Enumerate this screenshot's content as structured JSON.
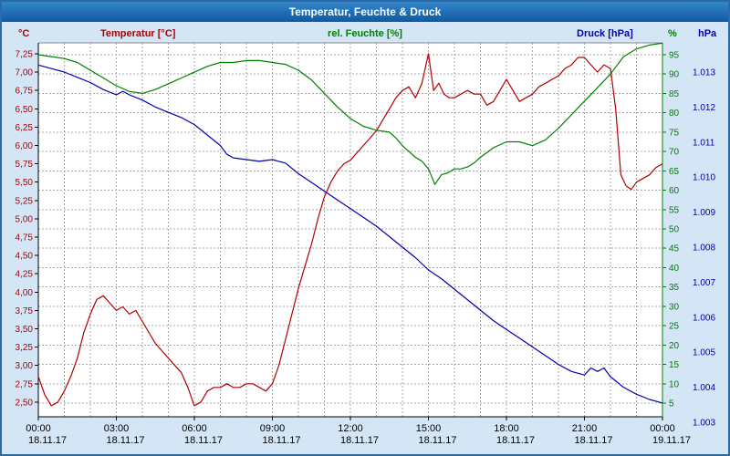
{
  "window": {
    "title": "Temperatur, Feuchte & Druck"
  },
  "header": {
    "left_unit": "°C",
    "temperature_label": "Temperatur [°C]",
    "humidity_label": "rel. Feuchte [%]",
    "pressure_label": "Druck [hPa]",
    "humidity_unit": "%",
    "pressure_unit": "hPa"
  },
  "colors": {
    "temperature": "#b00000",
    "humidity": "#008000",
    "pressure": "#0000b0",
    "grid": "#a8a8a8",
    "axis": "#000000",
    "background": "#d4e6f6",
    "plot_background": "#ffffff"
  },
  "chart_data": {
    "type": "line",
    "title": "Temperatur, Feuchte & Druck",
    "grid": "on",
    "x_axis": {
      "start": 0,
      "end": 24,
      "hours_per_gridline": 1,
      "hours_per_label": 3,
      "time_labels": [
        "00:00",
        "03:00",
        "06:00",
        "09:00",
        "12:00",
        "15:00",
        "18:00",
        "21:00",
        "00:00"
      ],
      "date_labels": [
        "18.11.17",
        "18.11.17",
        "18.11.17",
        "18.11.17",
        "18.11.17",
        "18.11.17",
        "18.11.17",
        "18.11.17",
        "19.11.17"
      ]
    },
    "y_axes": [
      {
        "id": "temperature",
        "title": "Temperatur [°C]",
        "unit": "°C",
        "color": "#b00000",
        "min": 2.5,
        "max": 7.25,
        "step": 0.25,
        "decimals": 2,
        "decimal_comma": true,
        "side": "left"
      },
      {
        "id": "humidity",
        "title": "rel. Feuchte [%]",
        "unit": "%",
        "color": "#008000",
        "min": 5,
        "max": 95,
        "step": 5,
        "decimals": 0,
        "side": "right"
      },
      {
        "id": "pressure",
        "title": "Druck [hPa]",
        "unit": "hPa",
        "color": "#0000b0",
        "min": 1003,
        "max": 1013,
        "step": 1,
        "divide_by_1000": true,
        "side": "far-right"
      }
    ],
    "series": [
      {
        "id": "temperature",
        "name": "Temperatur",
        "axis": "temperature",
        "color": "#b00000",
        "points": [
          [
            0,
            2.85
          ],
          [
            0.25,
            2.6
          ],
          [
            0.5,
            2.45
          ],
          [
            0.75,
            2.5
          ],
          [
            1,
            2.65
          ],
          [
            1.25,
            2.85
          ],
          [
            1.5,
            3.1
          ],
          [
            1.75,
            3.45
          ],
          [
            2,
            3.7
          ],
          [
            2.25,
            3.9
          ],
          [
            2.5,
            3.95
          ],
          [
            2.75,
            3.85
          ],
          [
            3,
            3.75
          ],
          [
            3.25,
            3.8
          ],
          [
            3.5,
            3.7
          ],
          [
            3.75,
            3.75
          ],
          [
            4,
            3.6
          ],
          [
            4.25,
            3.45
          ],
          [
            4.5,
            3.3
          ],
          [
            4.75,
            3.2
          ],
          [
            5,
            3.1
          ],
          [
            5.25,
            3.0
          ],
          [
            5.5,
            2.9
          ],
          [
            5.75,
            2.7
          ],
          [
            6,
            2.45
          ],
          [
            6.25,
            2.5
          ],
          [
            6.5,
            2.65
          ],
          [
            6.75,
            2.7
          ],
          [
            7,
            2.7
          ],
          [
            7.25,
            2.75
          ],
          [
            7.5,
            2.7
          ],
          [
            7.75,
            2.7
          ],
          [
            8,
            2.75
          ],
          [
            8.25,
            2.75
          ],
          [
            8.5,
            2.7
          ],
          [
            8.75,
            2.65
          ],
          [
            9,
            2.75
          ],
          [
            9.25,
            3.0
          ],
          [
            9.5,
            3.35
          ],
          [
            9.75,
            3.7
          ],
          [
            10,
            4.05
          ],
          [
            10.25,
            4.35
          ],
          [
            10.5,
            4.65
          ],
          [
            10.75,
            5.0
          ],
          [
            11,
            5.3
          ],
          [
            11.25,
            5.5
          ],
          [
            11.5,
            5.65
          ],
          [
            11.75,
            5.75
          ],
          [
            12,
            5.8
          ],
          [
            12.25,
            5.9
          ],
          [
            12.5,
            6.0
          ],
          [
            12.75,
            6.1
          ],
          [
            13,
            6.2
          ],
          [
            13.25,
            6.35
          ],
          [
            13.5,
            6.5
          ],
          [
            13.75,
            6.65
          ],
          [
            14,
            6.75
          ],
          [
            14.25,
            6.8
          ],
          [
            14.5,
            6.65
          ],
          [
            14.75,
            6.85
          ],
          [
            15,
            7.25
          ],
          [
            15.2,
            6.75
          ],
          [
            15.4,
            6.85
          ],
          [
            15.6,
            6.7
          ],
          [
            15.8,
            6.65
          ],
          [
            16,
            6.65
          ],
          [
            16.25,
            6.7
          ],
          [
            16.5,
            6.75
          ],
          [
            16.75,
            6.7
          ],
          [
            17,
            6.7
          ],
          [
            17.25,
            6.55
          ],
          [
            17.5,
            6.6
          ],
          [
            17.75,
            6.75
          ],
          [
            18,
            6.9
          ],
          [
            18.25,
            6.75
          ],
          [
            18.5,
            6.6
          ],
          [
            18.75,
            6.65
          ],
          [
            19,
            6.7
          ],
          [
            19.25,
            6.8
          ],
          [
            19.5,
            6.85
          ],
          [
            19.75,
            6.9
          ],
          [
            20,
            6.95
          ],
          [
            20.25,
            7.05
          ],
          [
            20.5,
            7.1
          ],
          [
            20.75,
            7.2
          ],
          [
            21,
            7.2
          ],
          [
            21.25,
            7.1
          ],
          [
            21.5,
            7.0
          ],
          [
            21.75,
            7.1
          ],
          [
            22,
            7.05
          ],
          [
            22.2,
            6.5
          ],
          [
            22.4,
            5.6
          ],
          [
            22.6,
            5.45
          ],
          [
            22.8,
            5.4
          ],
          [
            23,
            5.5
          ],
          [
            23.25,
            5.55
          ],
          [
            23.5,
            5.6
          ],
          [
            23.75,
            5.7
          ],
          [
            24,
            5.75
          ]
        ]
      },
      {
        "id": "humidity",
        "name": "rel. Feuchte",
        "axis": "humidity",
        "color": "#008000",
        "points": [
          [
            0,
            95
          ],
          [
            0.5,
            94.5
          ],
          [
            1,
            94
          ],
          [
            1.5,
            93
          ],
          [
            2,
            91
          ],
          [
            2.5,
            89
          ],
          [
            3,
            87
          ],
          [
            3.5,
            85.5
          ],
          [
            4,
            85
          ],
          [
            4.5,
            86
          ],
          [
            5,
            87.5
          ],
          [
            5.5,
            89
          ],
          [
            6,
            90.5
          ],
          [
            6.5,
            92
          ],
          [
            7,
            93
          ],
          [
            7.5,
            93
          ],
          [
            8,
            93.5
          ],
          [
            8.5,
            93.5
          ],
          [
            9,
            93
          ],
          [
            9.5,
            92.5
          ],
          [
            10,
            91
          ],
          [
            10.5,
            88.5
          ],
          [
            11,
            85
          ],
          [
            11.5,
            81.5
          ],
          [
            12,
            78.5
          ],
          [
            12.5,
            76.5
          ],
          [
            13,
            75.5
          ],
          [
            13.5,
            75
          ],
          [
            13.75,
            73.5
          ],
          [
            14,
            71.5
          ],
          [
            14.25,
            70
          ],
          [
            14.5,
            68.5
          ],
          [
            14.75,
            67.5
          ],
          [
            15,
            65.5
          ],
          [
            15.25,
            61.5
          ],
          [
            15.5,
            64
          ],
          [
            15.75,
            64.5
          ],
          [
            16,
            65.5
          ],
          [
            16.25,
            65.5
          ],
          [
            16.5,
            66
          ],
          [
            16.75,
            67
          ],
          [
            17,
            68.5
          ],
          [
            17.5,
            71
          ],
          [
            18,
            72.5
          ],
          [
            18.5,
            72.5
          ],
          [
            19,
            71.5
          ],
          [
            19.5,
            73
          ],
          [
            20,
            76
          ],
          [
            20.5,
            79.5
          ],
          [
            21,
            83
          ],
          [
            21.5,
            86.5
          ],
          [
            22,
            90
          ],
          [
            22.5,
            94.5
          ],
          [
            23,
            96.5
          ],
          [
            23.5,
            97.5
          ],
          [
            24,
            98
          ]
        ]
      },
      {
        "id": "pressure",
        "name": "Druck",
        "axis": "pressure",
        "color": "#0000b0",
        "points": [
          [
            0,
            1013.2
          ],
          [
            0.5,
            1013.1
          ],
          [
            1,
            1013.0
          ],
          [
            1.5,
            1012.85
          ],
          [
            2,
            1012.7
          ],
          [
            2.5,
            1012.5
          ],
          [
            3,
            1012.35
          ],
          [
            3.25,
            1012.45
          ],
          [
            3.5,
            1012.35
          ],
          [
            4,
            1012.2
          ],
          [
            4.5,
            1012.0
          ],
          [
            5,
            1011.85
          ],
          [
            5.5,
            1011.7
          ],
          [
            6,
            1011.5
          ],
          [
            6.5,
            1011.2
          ],
          [
            7,
            1010.9
          ],
          [
            7.25,
            1010.65
          ],
          [
            7.5,
            1010.55
          ],
          [
            8,
            1010.5
          ],
          [
            8.5,
            1010.45
          ],
          [
            9,
            1010.5
          ],
          [
            9.25,
            1010.45
          ],
          [
            9.5,
            1010.4
          ],
          [
            10,
            1010.1
          ],
          [
            10.5,
            1009.85
          ],
          [
            11,
            1009.6
          ],
          [
            11.5,
            1009.35
          ],
          [
            12,
            1009.1
          ],
          [
            12.5,
            1008.85
          ],
          [
            13,
            1008.6
          ],
          [
            13.5,
            1008.3
          ],
          [
            14,
            1008.0
          ],
          [
            14.5,
            1007.7
          ],
          [
            15,
            1007.35
          ],
          [
            15.5,
            1007.1
          ],
          [
            16,
            1006.8
          ],
          [
            16.5,
            1006.5
          ],
          [
            17,
            1006.2
          ],
          [
            17.5,
            1005.9
          ],
          [
            18,
            1005.65
          ],
          [
            18.5,
            1005.4
          ],
          [
            19,
            1005.15
          ],
          [
            19.5,
            1004.9
          ],
          [
            20,
            1004.65
          ],
          [
            20.5,
            1004.45
          ],
          [
            21,
            1004.35
          ],
          [
            21.25,
            1004.55
          ],
          [
            21.5,
            1004.45
          ],
          [
            21.75,
            1004.55
          ],
          [
            22,
            1004.3
          ],
          [
            22.5,
            1004.0
          ],
          [
            23,
            1003.8
          ],
          [
            23.5,
            1003.65
          ],
          [
            24,
            1003.55
          ]
        ]
      }
    ]
  }
}
